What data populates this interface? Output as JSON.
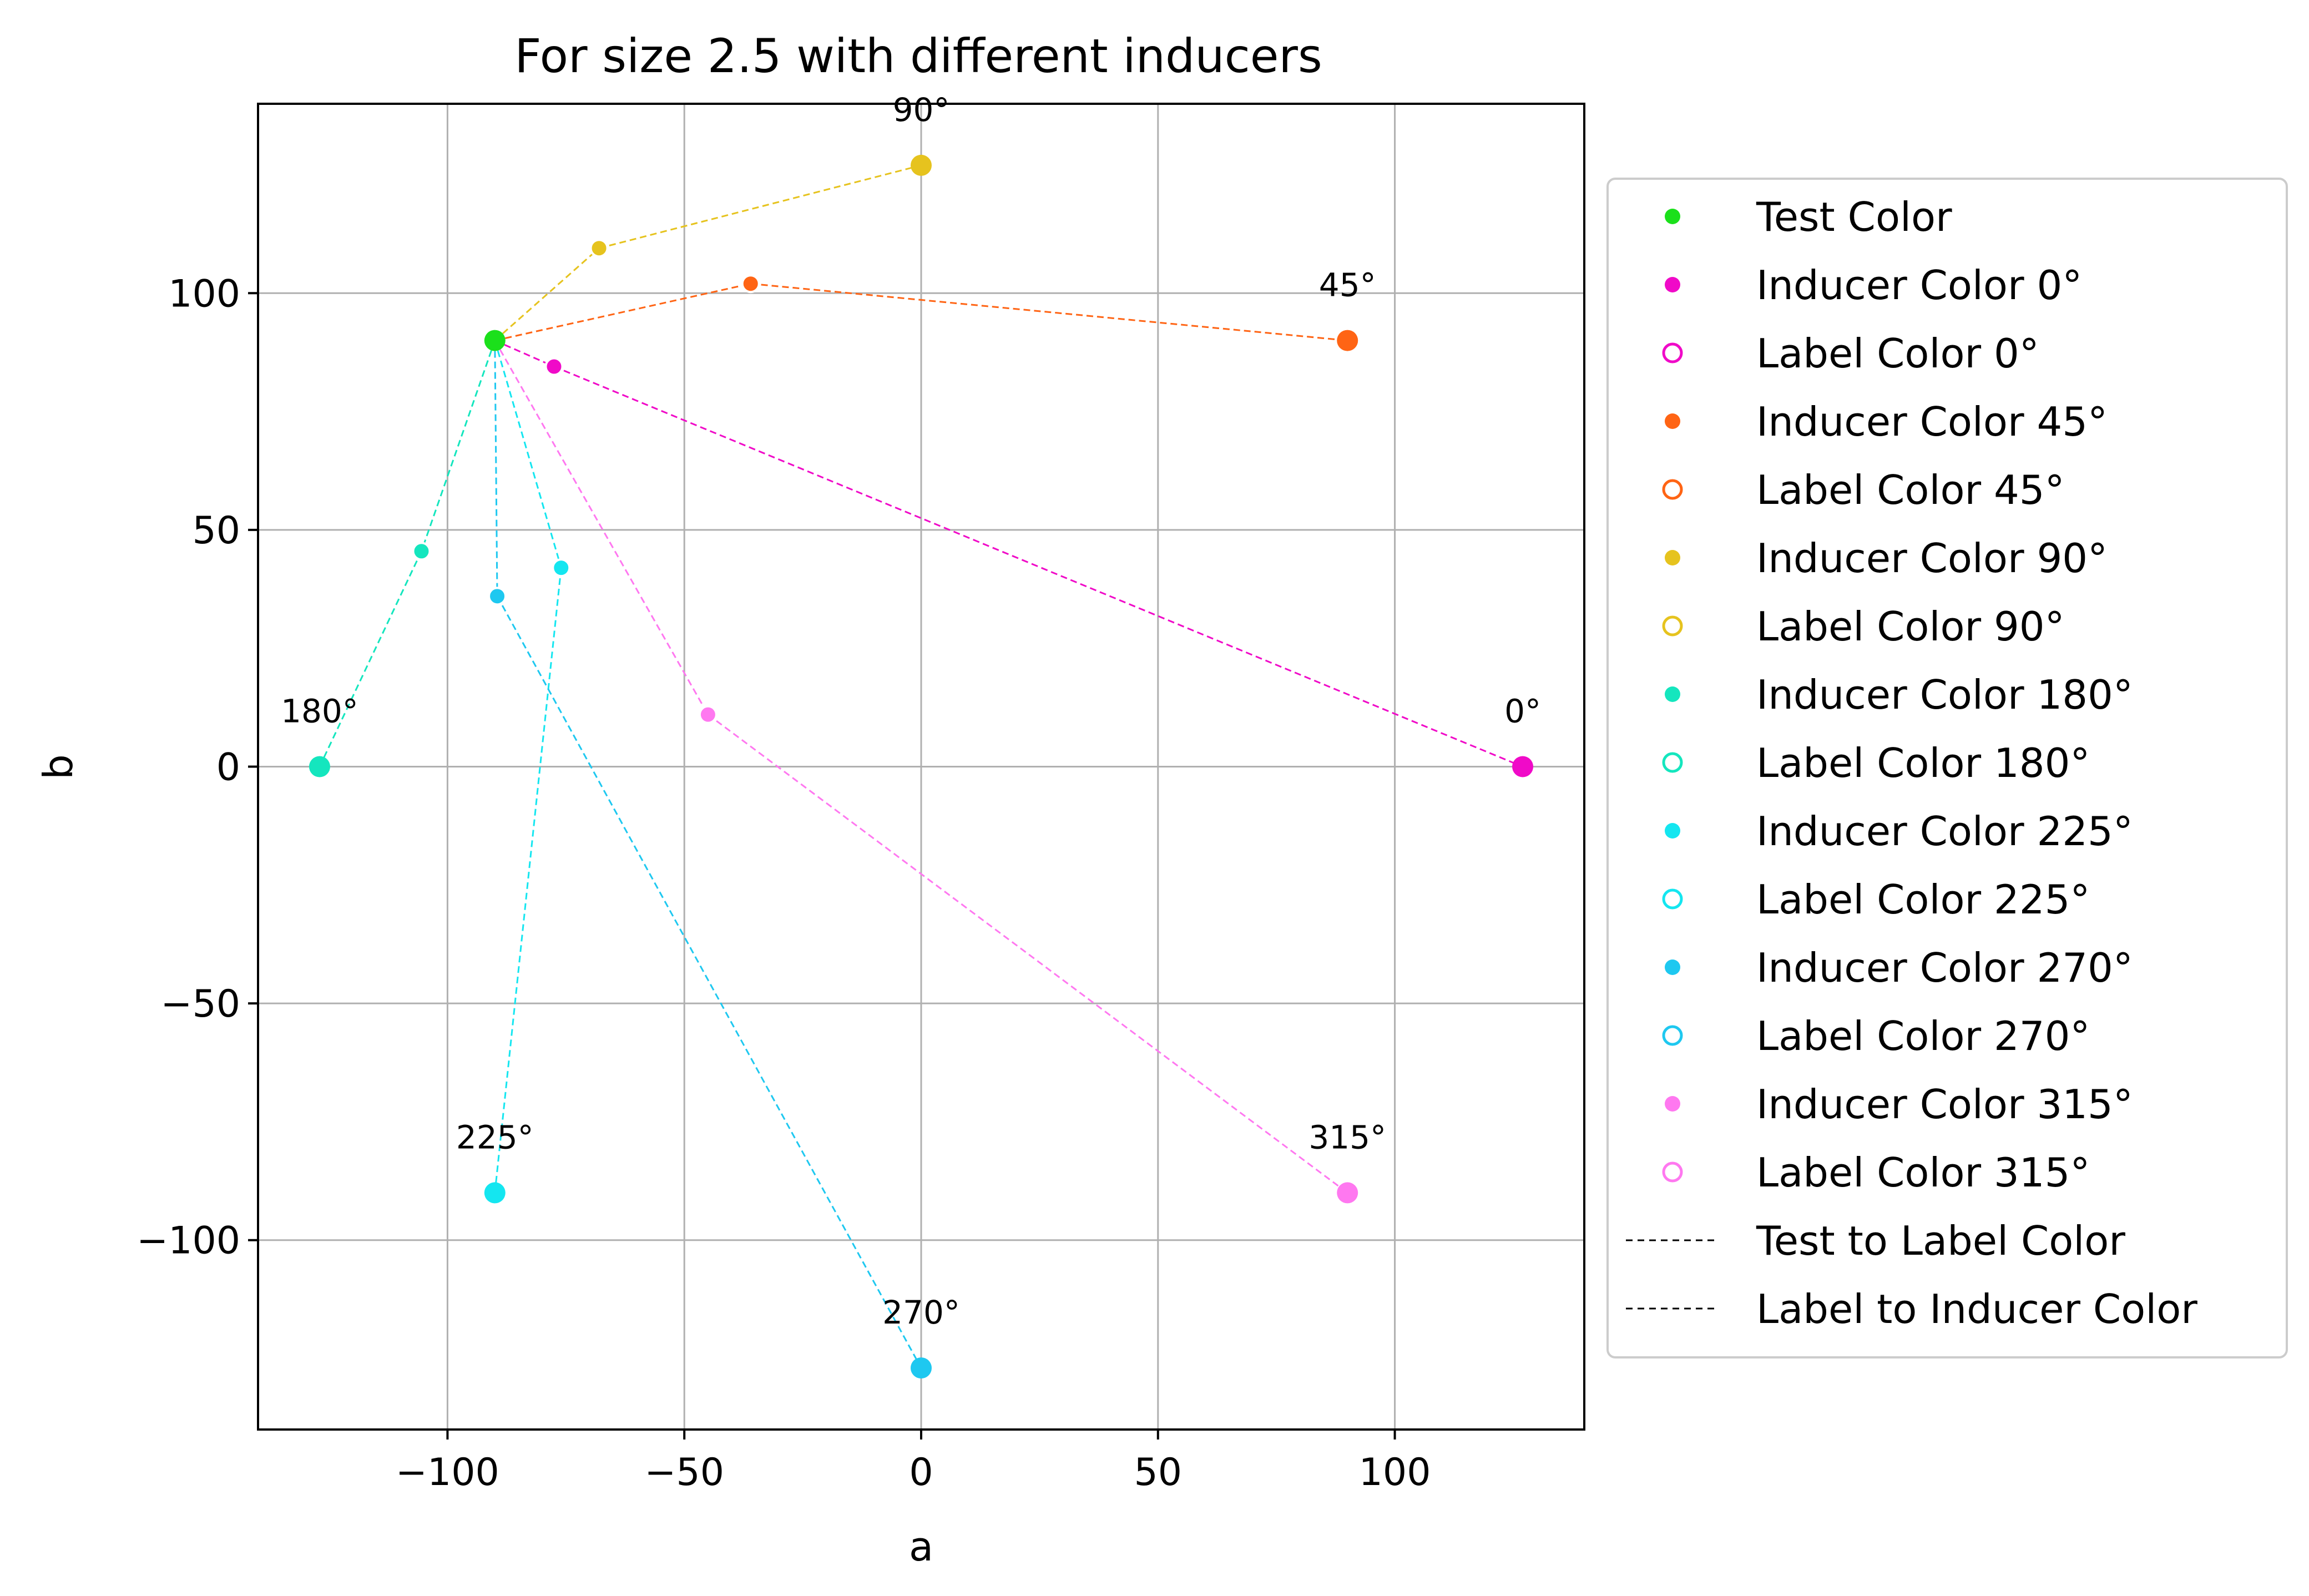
{
  "chart_data": {
    "type": "scatter",
    "title": "For size 2.5 with different inducers",
    "xlabel": "a",
    "ylabel": "b",
    "xlim": [
      -140,
      140
    ],
    "ylim": [
      -140,
      140
    ],
    "grid": true,
    "legend_position": "outside-right",
    "x_ticks": [
      {
        "value": -100,
        "label": "−100"
      },
      {
        "value": -50,
        "label": "−50"
      },
      {
        "value": 0,
        "label": "0"
      },
      {
        "value": 50,
        "label": "50"
      },
      {
        "value": 100,
        "label": "100"
      }
    ],
    "y_ticks": [
      {
        "value": -100,
        "label": "−100"
      },
      {
        "value": -50,
        "label": "−50"
      },
      {
        "value": 0,
        "label": "0"
      },
      {
        "value": 50,
        "label": "50"
      },
      {
        "value": 100,
        "label": "100"
      }
    ],
    "test_color": {
      "a": -90,
      "b": 90,
      "color": "#1be01b"
    },
    "inducers": [
      {
        "angle_label": "0°",
        "color": "#f00ac8",
        "inducer": {
          "a": 127,
          "b": 0
        },
        "label_point": {
          "a": -77.5,
          "b": 84.5
        }
      },
      {
        "angle_label": "45°",
        "color": "#ff6414",
        "inducer": {
          "a": 90,
          "b": 90
        },
        "label_point": {
          "a": -36,
          "b": 102
        }
      },
      {
        "angle_label": "90°",
        "color": "#e6c31e",
        "inducer": {
          "a": 0,
          "b": 127
        },
        "label_point": {
          "a": -68,
          "b": 109.5
        }
      },
      {
        "angle_label": "180°",
        "color": "#14e6be",
        "inducer": {
          "a": -127,
          "b": 0
        },
        "label_point": {
          "a": -105.5,
          "b": 45.5
        }
      },
      {
        "angle_label": "225°",
        "color": "#14e6f0",
        "inducer": {
          "a": -90,
          "b": -90
        },
        "label_point": {
          "a": -76,
          "b": 42
        }
      },
      {
        "angle_label": "270°",
        "color": "#1ec8f0",
        "inducer": {
          "a": 0,
          "b": -127
        },
        "label_point": {
          "a": -89.5,
          "b": 36
        }
      },
      {
        "angle_label": "315°",
        "color": "#ff78f0",
        "inducer": {
          "a": 90,
          "b": -90
        },
        "label_point": {
          "a": -45,
          "b": 11
        }
      }
    ],
    "legend": [
      {
        "text": "Test Color",
        "kind": "dot",
        "color": "#1be01b"
      },
      {
        "text": "Inducer Color 0°",
        "kind": "dot",
        "color": "#f00ac8"
      },
      {
        "text": "Label Color 0°",
        "kind": "ring",
        "color": "#f00ac8"
      },
      {
        "text": "Inducer Color 45°",
        "kind": "dot",
        "color": "#ff6414"
      },
      {
        "text": "Label Color 45°",
        "kind": "ring",
        "color": "#ff6414"
      },
      {
        "text": "Inducer Color 90°",
        "kind": "dot",
        "color": "#e6c31e"
      },
      {
        "text": "Label Color 90°",
        "kind": "ring",
        "color": "#e6c31e"
      },
      {
        "text": "Inducer Color 180°",
        "kind": "dot",
        "color": "#14e6be"
      },
      {
        "text": "Label Color 180°",
        "kind": "ring",
        "color": "#14e6be"
      },
      {
        "text": "Inducer Color 225°",
        "kind": "dot",
        "color": "#14e6f0"
      },
      {
        "text": "Label Color 225°",
        "kind": "ring",
        "color": "#14e6f0"
      },
      {
        "text": "Inducer Color 270°",
        "kind": "dot",
        "color": "#1ec8f0"
      },
      {
        "text": "Label Color 270°",
        "kind": "ring",
        "color": "#1ec8f0"
      },
      {
        "text": "Inducer Color 315°",
        "kind": "dot",
        "color": "#ff78f0"
      },
      {
        "text": "Label Color 315°",
        "kind": "ring",
        "color": "#ff78f0"
      },
      {
        "text": "Test to Label Color",
        "kind": "dash",
        "color": "#000000"
      },
      {
        "text": "Label to Inducer Color",
        "kind": "dash",
        "color": "#000000"
      }
    ]
  }
}
